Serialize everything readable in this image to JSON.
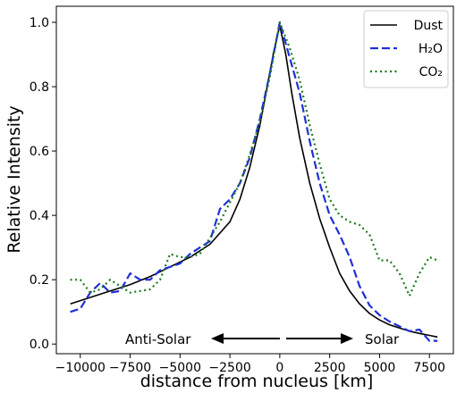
{
  "chart_data": {
    "type": "line",
    "title": "",
    "xlabel": "distance from nucleus [km]",
    "ylabel": "Relative Intensity",
    "xlim": [
      -11200,
      8700
    ],
    "ylim": [
      -0.03,
      1.05
    ],
    "xticks": [
      -10000,
      -7500,
      -5000,
      -2500,
      0,
      2500,
      5000,
      7500
    ],
    "xtick_labels": [
      "−10000",
      "−7500",
      "−5000",
      "−2500",
      "0",
      "2500",
      "5000",
      "7500"
    ],
    "yticks": [
      0.0,
      0.2,
      0.4,
      0.6,
      0.8,
      1.0
    ],
    "ytick_labels": [
      "0.0",
      "0.2",
      "0.4",
      "0.6",
      "0.8",
      "1.0"
    ],
    "grid": false,
    "legend_position": "top-right",
    "series": [
      {
        "name": "Dust",
        "color": "#000000",
        "style": "solid",
        "x": [
          -10500,
          -9500,
          -8500,
          -7500,
          -6500,
          -5500,
          -4500,
          -3500,
          -2500,
          -2000,
          -1500,
          -1000,
          -600,
          -300,
          0,
          300,
          600,
          1000,
          1500,
          2000,
          2500,
          3000,
          3500,
          4000,
          4500,
          5000,
          5500,
          6000,
          6500,
          7000,
          7500,
          7900
        ],
        "y": [
          0.125,
          0.145,
          0.165,
          0.185,
          0.21,
          0.24,
          0.27,
          0.31,
          0.38,
          0.45,
          0.55,
          0.68,
          0.81,
          0.91,
          0.99,
          0.9,
          0.78,
          0.64,
          0.5,
          0.39,
          0.3,
          0.22,
          0.165,
          0.125,
          0.095,
          0.075,
          0.06,
          0.05,
          0.04,
          0.033,
          0.027,
          0.022
        ]
      },
      {
        "name": "H₂O",
        "color": "#1f2fd6",
        "style": "dashed",
        "x": [
          -10500,
          -10000,
          -9500,
          -9000,
          -8500,
          -8000,
          -7500,
          -7000,
          -6500,
          -6000,
          -5500,
          -5000,
          -4500,
          -4000,
          -3500,
          -3000,
          -2500,
          -2000,
          -1500,
          -1000,
          -500,
          0,
          500,
          1000,
          1500,
          2000,
          2500,
          3000,
          3500,
          4000,
          4500,
          5000,
          5500,
          6000,
          6500,
          7000,
          7500,
          7900
        ],
        "y": [
          0.1,
          0.11,
          0.16,
          0.19,
          0.16,
          0.165,
          0.22,
          0.2,
          0.2,
          0.23,
          0.24,
          0.25,
          0.28,
          0.3,
          0.32,
          0.42,
          0.45,
          0.5,
          0.58,
          0.7,
          0.84,
          1.0,
          0.89,
          0.78,
          0.63,
          0.5,
          0.4,
          0.34,
          0.27,
          0.18,
          0.12,
          0.09,
          0.07,
          0.055,
          0.04,
          0.045,
          0.01,
          0.01
        ]
      },
      {
        "name": "CO₂",
        "color": "#1a7a1a",
        "style": "dotted",
        "x": [
          -10500,
          -10000,
          -9500,
          -9000,
          -8500,
          -8000,
          -7500,
          -7000,
          -6500,
          -6000,
          -5500,
          -5000,
          -4500,
          -4000,
          -3500,
          -3000,
          -2500,
          -2000,
          -1500,
          -1000,
          -500,
          0,
          500,
          1000,
          1500,
          2000,
          2500,
          3000,
          3500,
          4000,
          4500,
          5000,
          5500,
          6000,
          6500,
          7000,
          7500,
          7900
        ],
        "y": [
          0.2,
          0.2,
          0.16,
          0.17,
          0.2,
          0.18,
          0.16,
          0.165,
          0.17,
          0.2,
          0.28,
          0.27,
          0.27,
          0.28,
          0.33,
          0.38,
          0.44,
          0.5,
          0.59,
          0.69,
          0.83,
          1.0,
          0.92,
          0.82,
          0.68,
          0.56,
          0.45,
          0.4,
          0.38,
          0.37,
          0.34,
          0.26,
          0.26,
          0.22,
          0.15,
          0.22,
          0.27,
          0.26
        ]
      }
    ],
    "annotations": [
      {
        "text": "Anti-Solar",
        "arrow": "left"
      },
      {
        "text": "Solar",
        "arrow": "right"
      }
    ]
  }
}
